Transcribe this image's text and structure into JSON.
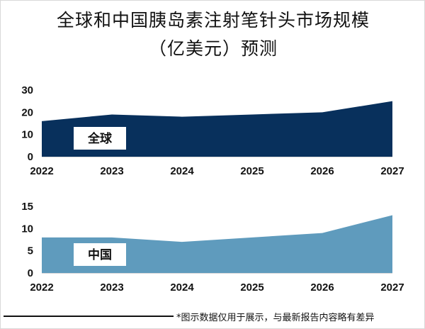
{
  "title_line1": "全球和中国胰岛素注射笔针头市场规模",
  "title_line2": "（亿美元）预测",
  "footnote": "*图示数据仅用于展示，与最新报告内容略有差异",
  "chart_data": [
    {
      "type": "area",
      "series_label": "全球",
      "color": "#08305c",
      "x": [
        "2022",
        "2023",
        "2024",
        "2025",
        "2026",
        "2027"
      ],
      "values": [
        16,
        19,
        18,
        19,
        20,
        25
      ],
      "ylim": [
        0,
        30
      ],
      "yticks": [
        "0",
        "10",
        "20",
        "30"
      ],
      "grid": false
    },
    {
      "type": "area",
      "series_label": "中国",
      "color": "#5f9bbd",
      "x": [
        "2022",
        "2023",
        "2024",
        "2025",
        "2026",
        "2027"
      ],
      "values": [
        8,
        8,
        7,
        8,
        9,
        13
      ],
      "ylim": [
        0,
        15
      ],
      "yticks": [
        "0",
        "5",
        "10",
        "15"
      ],
      "grid": false
    }
  ]
}
